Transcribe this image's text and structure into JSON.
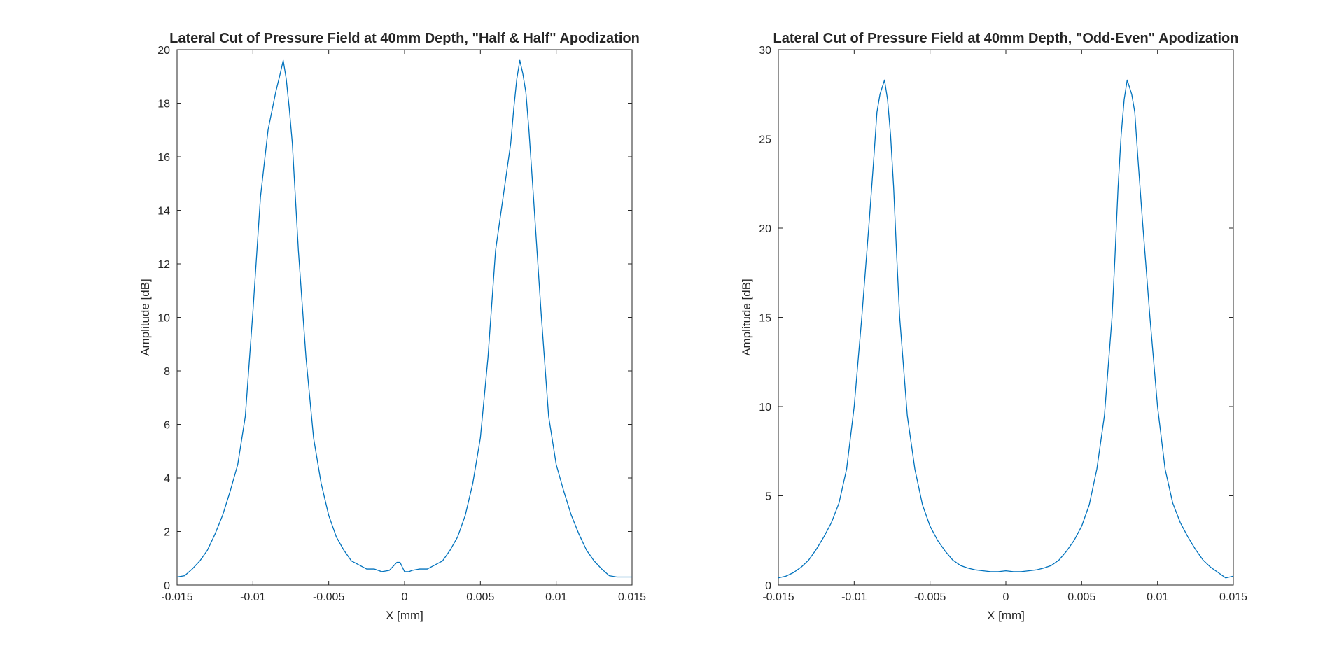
{
  "chart_data": [
    {
      "type": "line",
      "title": "Lateral Cut of Pressure Field at 40mm Depth, \"Half & Half\" Apodization",
      "xlabel": "X [mm]",
      "ylabel": "Amplitude [dB]",
      "xlim": [
        -0.015,
        0.015
      ],
      "ylim": [
        0,
        20
      ],
      "xticks": [
        -0.015,
        -0.01,
        -0.005,
        0,
        0.005,
        0.01,
        0.015
      ],
      "xtick_labels": [
        "-0.015",
        "-0.01",
        "-0.005",
        "0",
        "0.005",
        "0.01",
        "0.015"
      ],
      "yticks": [
        0,
        2,
        4,
        6,
        8,
        10,
        12,
        14,
        16,
        18,
        20
      ],
      "ytick_labels": [
        "0",
        "2",
        "4",
        "6",
        "8",
        "10",
        "12",
        "14",
        "16",
        "18",
        "20"
      ],
      "grid": false,
      "line_color": "#0072BD",
      "series": [
        {
          "x": [
            -0.015,
            -0.0145,
            -0.014,
            -0.0135,
            -0.013,
            -0.0125,
            -0.012,
            -0.0115,
            -0.011,
            -0.0105,
            -0.01,
            -0.0095,
            -0.009,
            -0.0085,
            -0.0082,
            -0.008,
            -0.0078,
            -0.0076,
            -0.0074,
            -0.0072,
            -0.007,
            -0.0065,
            -0.006,
            -0.0055,
            -0.005,
            -0.0045,
            -0.004,
            -0.0035,
            -0.003,
            -0.0025,
            -0.002,
            -0.0015,
            -0.001,
            -0.0005,
            -0.0003,
            0,
            0.0003,
            0.0005,
            0.001,
            0.0015,
            0.002,
            0.0025,
            0.003,
            0.0035,
            0.004,
            0.0045,
            0.005,
            0.0055,
            0.006,
            0.0065,
            0.007,
            0.0072,
            0.0074,
            0.0076,
            0.0078,
            0.008,
            0.0082,
            0.0085,
            0.009,
            0.0095,
            0.01,
            0.0105,
            0.011,
            0.0115,
            0.012,
            0.0125,
            0.013,
            0.0135,
            0.014,
            0.0145,
            0.015
          ],
          "y": [
            0.3,
            0.35,
            0.6,
            0.9,
            1.3,
            1.9,
            2.6,
            3.5,
            4.5,
            6.3,
            10.2,
            14.5,
            17.0,
            18.4,
            19.1,
            19.6,
            18.9,
            17.8,
            16.5,
            14.5,
            12.5,
            8.5,
            5.5,
            3.8,
            2.6,
            1.8,
            1.3,
            0.9,
            0.75,
            0.6,
            0.6,
            0.5,
            0.55,
            0.85,
            0.85,
            0.5,
            0.5,
            0.55,
            0.6,
            0.6,
            0.75,
            0.9,
            1.3,
            1.8,
            2.6,
            3.8,
            5.5,
            8.5,
            12.5,
            14.5,
            16.5,
            17.8,
            18.9,
            19.6,
            19.1,
            18.4,
            17.0,
            14.5,
            10.2,
            6.3,
            4.5,
            3.5,
            2.6,
            1.9,
            1.3,
            0.9,
            0.6,
            0.35,
            0.3,
            0.3,
            0.3
          ]
        }
      ]
    },
    {
      "type": "line",
      "title": "Lateral Cut of Pressure Field at 40mm Depth, \"Odd-Even\" Apodization",
      "xlabel": "X [mm]",
      "ylabel": "Amplitude [dB]",
      "xlim": [
        -0.015,
        0.015
      ],
      "ylim": [
        0,
        30
      ],
      "xticks": [
        -0.015,
        -0.01,
        -0.005,
        0,
        0.005,
        0.01,
        0.015
      ],
      "xtick_labels": [
        "-0.015",
        "-0.01",
        "-0.005",
        "0",
        "0.005",
        "0.01",
        "0.015"
      ],
      "yticks": [
        0,
        5,
        10,
        15,
        20,
        25,
        30
      ],
      "ytick_labels": [
        "0",
        "5",
        "10",
        "15",
        "20",
        "25",
        "30"
      ],
      "grid": false,
      "line_color": "#0072BD",
      "series": [
        {
          "x": [
            -0.015,
            -0.0145,
            -0.014,
            -0.0135,
            -0.013,
            -0.0125,
            -0.012,
            -0.0115,
            -0.011,
            -0.0105,
            -0.01,
            -0.0095,
            -0.009,
            -0.0087,
            -0.0085,
            -0.0083,
            -0.008,
            -0.0078,
            -0.0076,
            -0.0074,
            -0.0072,
            -0.007,
            -0.0065,
            -0.006,
            -0.0055,
            -0.005,
            -0.0045,
            -0.004,
            -0.0035,
            -0.003,
            -0.0025,
            -0.002,
            -0.0015,
            -0.001,
            -0.0005,
            0,
            0.0005,
            0.001,
            0.0015,
            0.002,
            0.0025,
            0.003,
            0.0035,
            0.004,
            0.0045,
            0.005,
            0.0055,
            0.006,
            0.0065,
            0.007,
            0.0072,
            0.0074,
            0.0076,
            0.0078,
            0.008,
            0.0083,
            0.0085,
            0.0087,
            0.009,
            0.0095,
            0.01,
            0.0105,
            0.011,
            0.0115,
            0.012,
            0.0125,
            0.013,
            0.0135,
            0.014,
            0.0145,
            0.015
          ],
          "y": [
            0.4,
            0.5,
            0.7,
            1.0,
            1.4,
            2.0,
            2.7,
            3.5,
            4.6,
            6.5,
            10.0,
            15.0,
            20.5,
            24.0,
            26.5,
            27.5,
            28.3,
            27.2,
            25.2,
            22.3,
            18.5,
            15.0,
            9.5,
            6.5,
            4.5,
            3.3,
            2.5,
            1.9,
            1.4,
            1.1,
            0.95,
            0.85,
            0.8,
            0.75,
            0.75,
            0.8,
            0.75,
            0.75,
            0.8,
            0.85,
            0.95,
            1.1,
            1.4,
            1.9,
            2.5,
            3.3,
            4.5,
            6.5,
            9.5,
            15.0,
            18.5,
            22.3,
            25.2,
            27.2,
            28.3,
            27.5,
            26.5,
            24.0,
            20.5,
            15.0,
            10.0,
            6.5,
            4.6,
            3.5,
            2.7,
            2.0,
            1.4,
            1.0,
            0.7,
            0.4,
            0.5
          ]
        }
      ]
    }
  ]
}
